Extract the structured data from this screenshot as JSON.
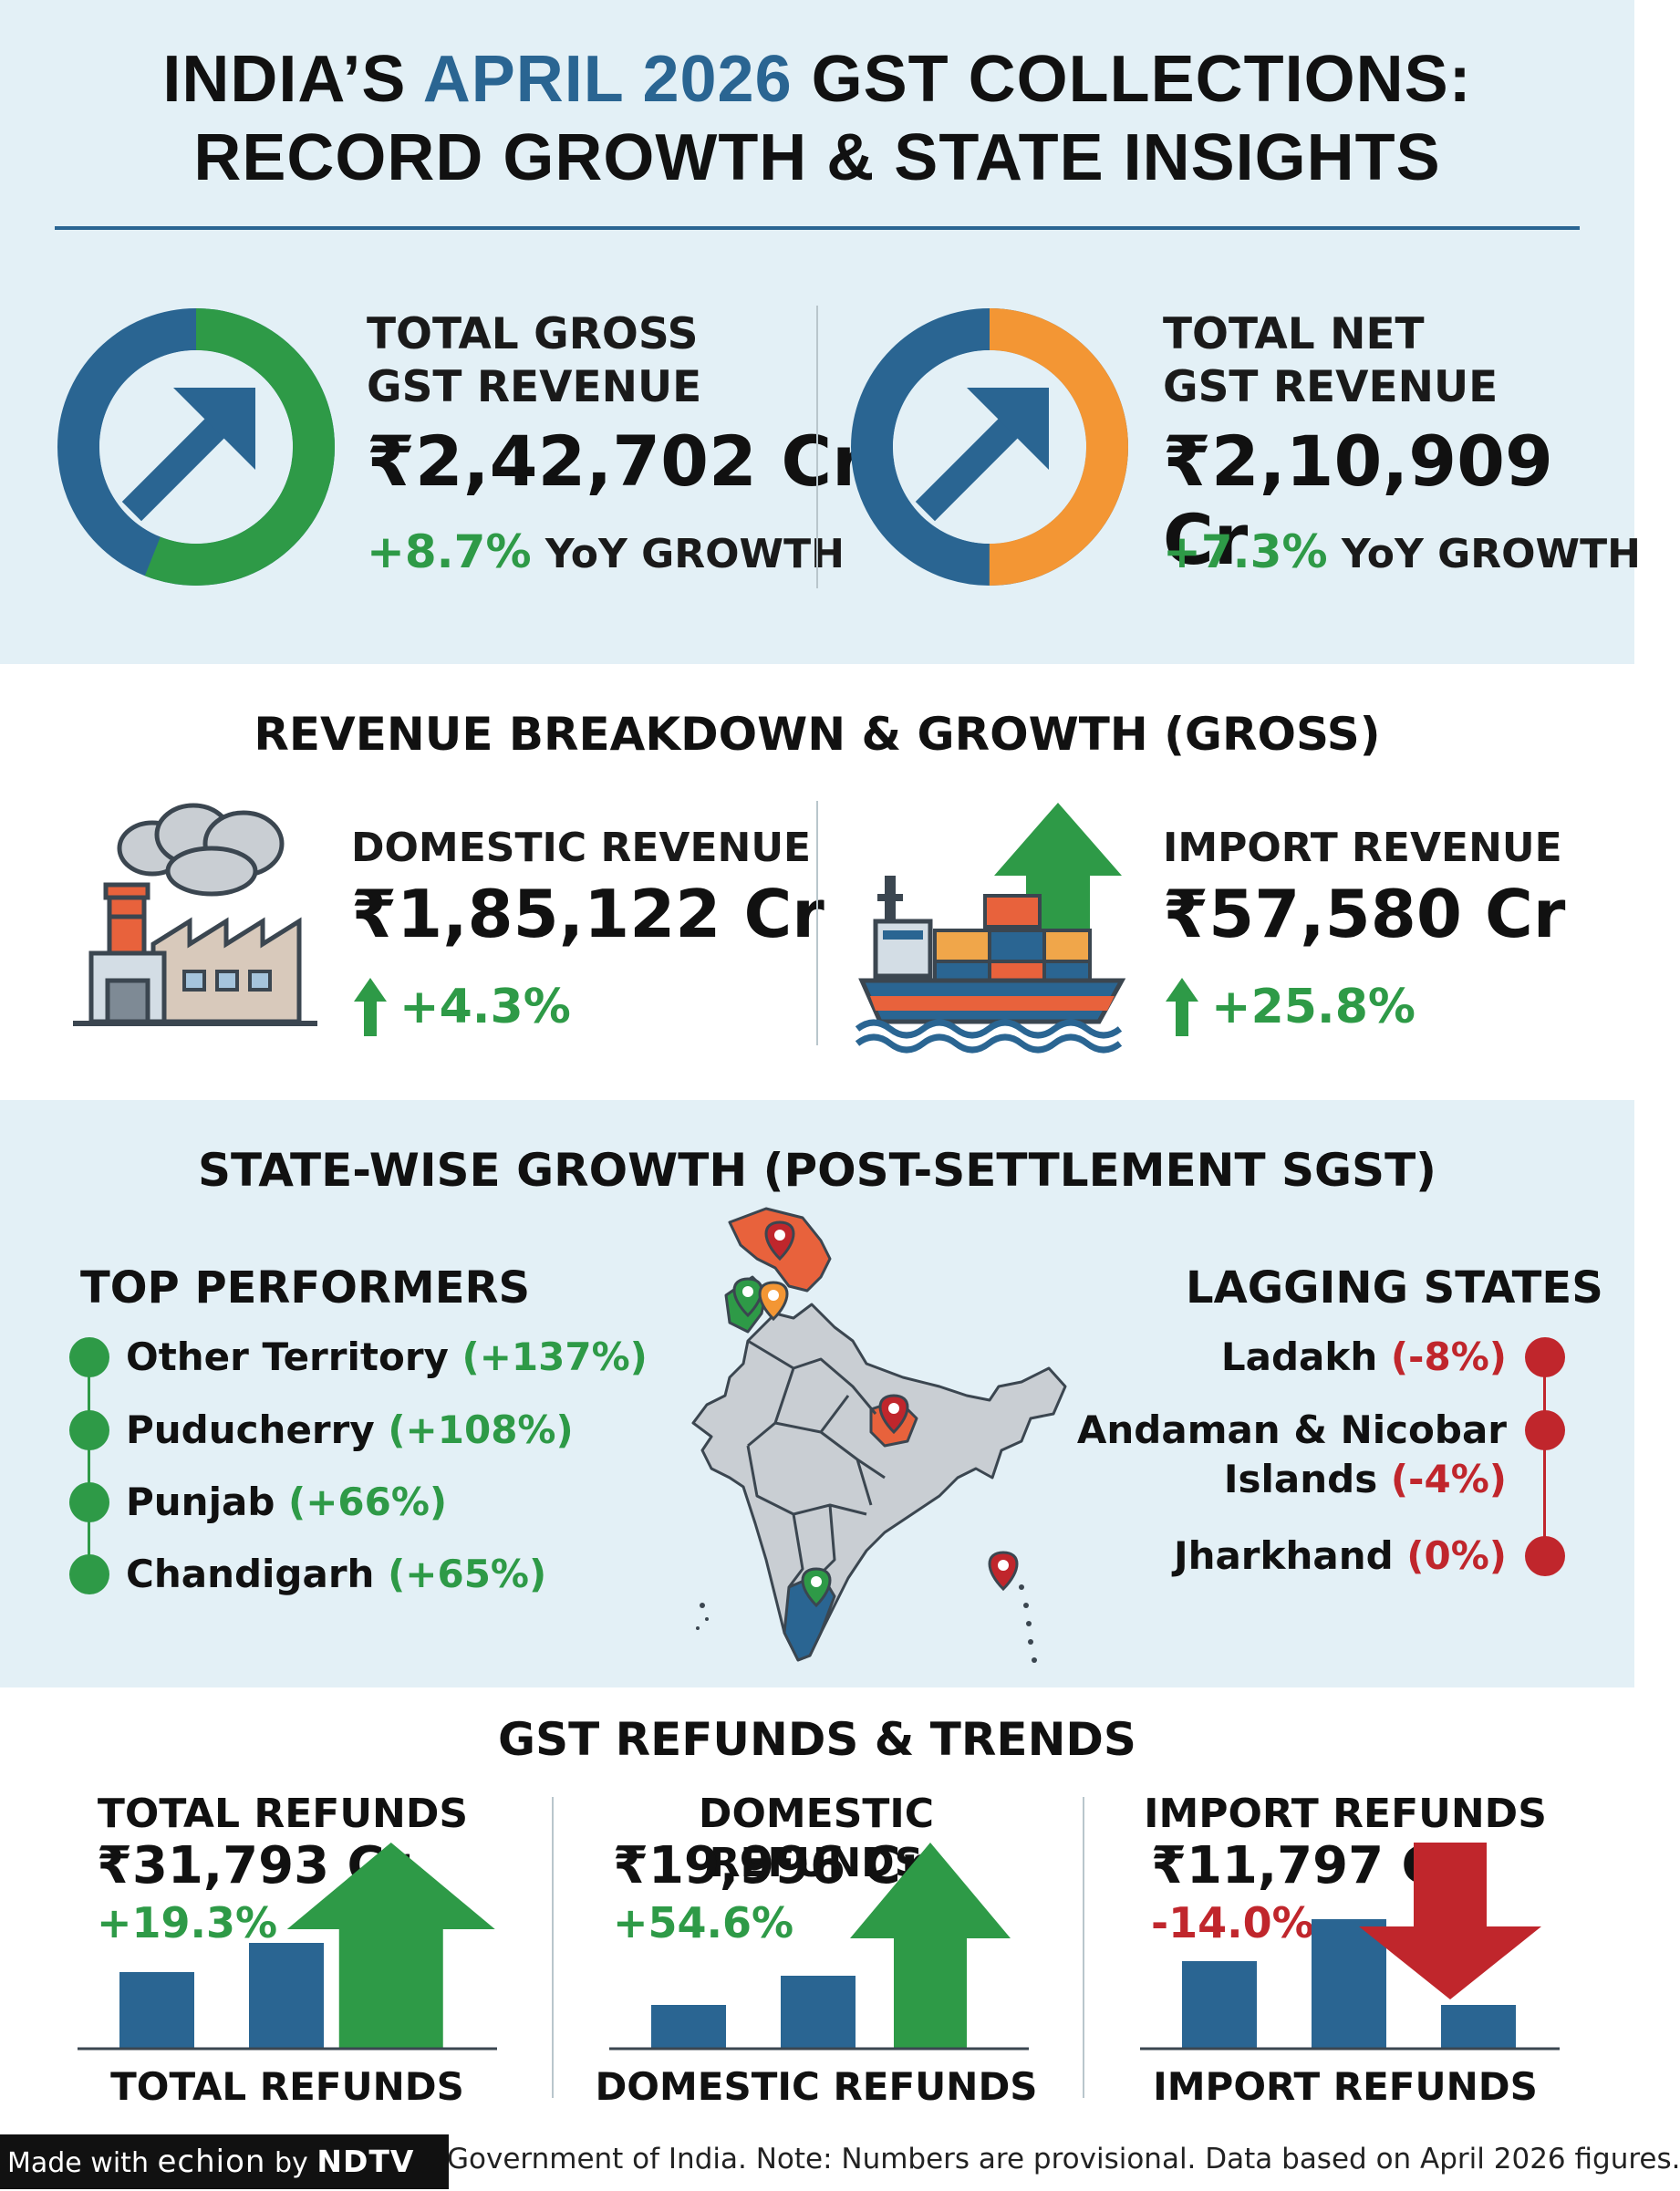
{
  "header": {
    "title_line1_pre": "INDIA’S ",
    "title_line1_highlight": "APRIL 2026",
    "title_line1_post": " GST COLLECTIONS:",
    "title_line2": "RECORD GROWTH & STATE INSIGHTS"
  },
  "kpis": [
    {
      "label_line1": "TOTAL GROSS",
      "label_line2": "GST REVENUE",
      "value": "₹2,42,702 Cr",
      "growth": "+8.7%",
      "growth_suffix": "YoY GROWTH",
      "ring_color": "#2e9a47",
      "ring_fraction": 0.56,
      "icon": "arrow-up-right-icon"
    },
    {
      "label_line1": "TOTAL NET",
      "label_line2": "GST REVENUE",
      "value": "₹2,10,909 Cr",
      "growth": "+7.3%",
      "growth_suffix": "YoY GROWTH",
      "ring_color": "#f39634",
      "ring_fraction": 0.5,
      "icon": "arrow-up-right-icon"
    }
  ],
  "breakdown": {
    "title": "REVENUE BREAKDOWN & GROWTH (GROSS)",
    "domestic": {
      "label": "DOMESTIC REVENUE",
      "value": "₹1,85,122 Cr",
      "growth": "+4.3%",
      "icon": "factory-icon"
    },
    "import": {
      "label": "IMPORT REVENUE",
      "value": "₹57,580 Cr",
      "growth": "+25.8%",
      "icon": "cargo-ship-icon"
    }
  },
  "states": {
    "title": "STATE-WISE GROWTH (POST-SETTLEMENT SGST)",
    "top_heading": "TOP PERFORMERS",
    "top": [
      {
        "name": "Other Territory",
        "change": "(+137%)"
      },
      {
        "name": "Puducherry",
        "change": "(+108%)"
      },
      {
        "name": "Punjab",
        "change": "(+66%)"
      },
      {
        "name": "Chandigarh",
        "change": "(+65%)"
      }
    ],
    "lagging_heading": "LAGGING STATES",
    "lagging": [
      {
        "name": "Ladakh",
        "change": "(-8%)"
      },
      {
        "name_line1": "Andaman & Nicobar",
        "name_line2": "Islands",
        "change": "(-4%)"
      },
      {
        "name": "Jharkhand",
        "change": "(0%)"
      }
    ],
    "map_icon": "india-map-icon",
    "colors": {
      "positive": "#2e9a47",
      "negative": "#c0262c"
    }
  },
  "refunds": {
    "title": "GST REFUNDS & TRENDS",
    "panels": [
      {
        "title": "TOTAL REFUNDS",
        "value": "₹31,793 Cr",
        "growth": "+19.3%",
        "trend": "up",
        "footer": "TOTAL REFUNDS"
      },
      {
        "title": "DOMESTIC REFUNDS",
        "value": "₹19,996 Cr",
        "growth": "+54.6%",
        "trend": "up",
        "footer": "DOMESTIC REFUNDS"
      },
      {
        "title": "IMPORT REFUNDS",
        "value": "₹11,797 Cr",
        "growth": "-14.0%",
        "trend": "down",
        "footer": "IMPORT REFUNDS"
      }
    ]
  },
  "footer": {
    "note": "Government of India. Note: Numbers are provisional. Data based on April 2026 figures.",
    "badge_prefix": "Made with ",
    "badge_brand": "echion",
    "badge_by": " by ",
    "badge_org": "NDTV"
  },
  "colors": {
    "navy": "#2a6592",
    "green": "#2e9a47",
    "orange": "#f39634",
    "red": "#c0262c",
    "light_band": "#e3f0f6"
  }
}
